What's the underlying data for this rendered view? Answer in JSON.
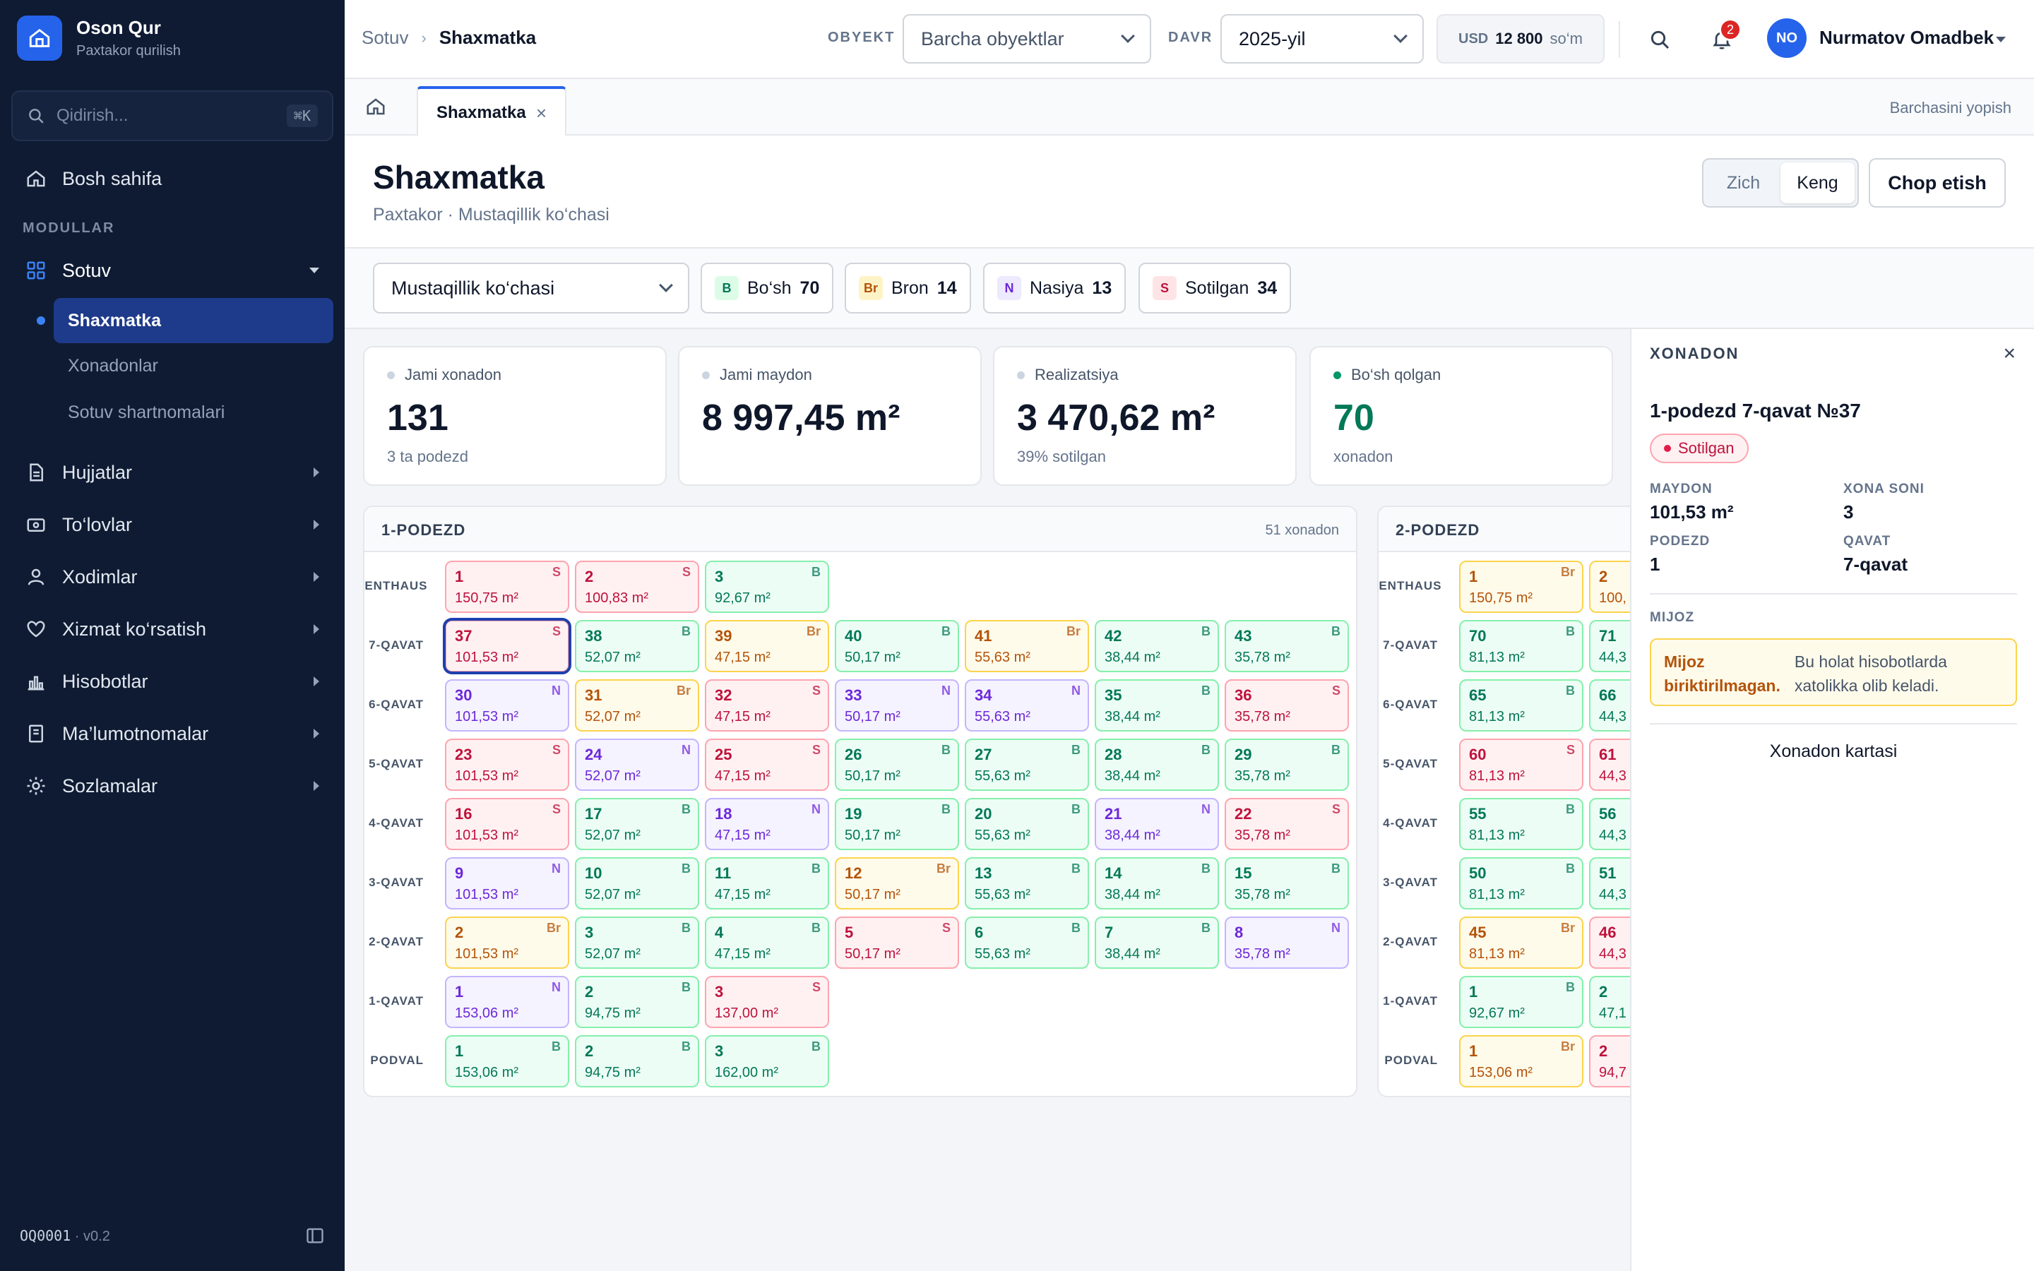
{
  "brand": {
    "name": "Oson Qur",
    "sub": "Paxtakor qurilish"
  },
  "sidebar": {
    "search_placeholder": "Qidirish...",
    "search_kbd": "⌘K",
    "home": "Bosh sahifa",
    "section": "MODULLAR",
    "modules": [
      {
        "label": "Sotuv",
        "icon": "grid-icon"
      },
      {
        "label": "Hujjatlar",
        "icon": "document-icon"
      },
      {
        "label": "To‘lovlar",
        "icon": "wallet-icon"
      },
      {
        "label": "Xodimlar",
        "icon": "user-icon"
      },
      {
        "label": "Xizmat ko‘rsatish",
        "icon": "heart-hand-icon"
      },
      {
        "label": "Hisobotlar",
        "icon": "bar-chart-icon"
      },
      {
        "label": "Ma’lumotnomalar",
        "icon": "book-icon"
      },
      {
        "label": "Sozlamalar",
        "icon": "gear-icon"
      }
    ],
    "subitems": [
      "Shaxmatka",
      "Xonadonlar",
      "Sotuv shartnomalari"
    ],
    "footer_code": "OQ0001",
    "footer_version": " · v0.2"
  },
  "topbar": {
    "crumb_parent": "Sotuv",
    "crumb_current": "Shaxmatka",
    "object_label": "OBYEKT",
    "object_value": "Barcha obyektlar",
    "period_label": "DAVR",
    "period_value": "2025-yil",
    "currency": {
      "code": "USD",
      "amount": "12 800",
      "unit": "so‘m"
    },
    "notifications": "2",
    "user_initials": "NO",
    "user_name": "Nurmatov Omadbek"
  },
  "tabs": {
    "active": "Shaxmatka",
    "close_all": "Barchasini yopish"
  },
  "page": {
    "title": "Shaxmatka",
    "subtitle": "Paxtakor · Mustaqillik ko‘chasi",
    "view_compact": "Zich",
    "view_wide": "Keng",
    "print": "Chop etish"
  },
  "filters": {
    "block": "Mustaqillik ko‘chasi",
    "legend": [
      {
        "code": "B",
        "label": "Bo‘sh",
        "count": "70",
        "color": "#047857"
      },
      {
        "code": "Br",
        "label": "Bron",
        "count": "14",
        "color": "#b45309"
      },
      {
        "code": "N",
        "label": "Nasiya",
        "count": "13",
        "color": "#6d28d9"
      },
      {
        "code": "S",
        "label": "Sotilgan",
        "count": "34",
        "color": "#be123c"
      }
    ]
  },
  "stats": [
    {
      "label": "Jami xonadon",
      "value": "131",
      "sub": "3 ta podezd"
    },
    {
      "label": "Jami maydon",
      "value": "8 997,45 m²",
      "sub": ""
    },
    {
      "label": "Realizatsiya",
      "value": "3 470,62 m²",
      "sub": "39% sotilgan"
    },
    {
      "label": "Bo‘sh qolgan",
      "value": "70",
      "sub": "xonadon"
    }
  ],
  "podezd1": {
    "title": "1-PODEZD",
    "count": "51 xonadon",
    "floors": [
      {
        "label": "PENTHAUS",
        "units": [
          [
            "1",
            "150,75 m²",
            "S"
          ],
          [
            "2",
            "100,83 m²",
            "S"
          ],
          [
            "3",
            "92,67 m²",
            "B"
          ]
        ]
      },
      {
        "label": "7-QAVAT",
        "units": [
          [
            "37",
            "101,53 m²",
            "S"
          ],
          [
            "38",
            "52,07 m²",
            "B"
          ],
          [
            "39",
            "47,15 m²",
            "Br"
          ],
          [
            "40",
            "50,17 m²",
            "B"
          ],
          [
            "41",
            "55,63 m²",
            "Br"
          ],
          [
            "42",
            "38,44 m²",
            "B"
          ],
          [
            "43",
            "35,78 m²",
            "B"
          ]
        ]
      },
      {
        "label": "6-QAVAT",
        "units": [
          [
            "30",
            "101,53 m²",
            "N"
          ],
          [
            "31",
            "52,07 m²",
            "Br"
          ],
          [
            "32",
            "47,15 m²",
            "S"
          ],
          [
            "33",
            "50,17 m²",
            "N"
          ],
          [
            "34",
            "55,63 m²",
            "N"
          ],
          [
            "35",
            "38,44 m²",
            "B"
          ],
          [
            "36",
            "35,78 m²",
            "S"
          ]
        ]
      },
      {
        "label": "5-QAVAT",
        "units": [
          [
            "23",
            "101,53 m²",
            "S"
          ],
          [
            "24",
            "52,07 m²",
            "N"
          ],
          [
            "25",
            "47,15 m²",
            "S"
          ],
          [
            "26",
            "50,17 m²",
            "B"
          ],
          [
            "27",
            "55,63 m²",
            "B"
          ],
          [
            "28",
            "38,44 m²",
            "B"
          ],
          [
            "29",
            "35,78 m²",
            "B"
          ]
        ]
      },
      {
        "label": "4-QAVAT",
        "units": [
          [
            "16",
            "101,53 m²",
            "S"
          ],
          [
            "17",
            "52,07 m²",
            "B"
          ],
          [
            "18",
            "47,15 m²",
            "N"
          ],
          [
            "19",
            "50,17 m²",
            "B"
          ],
          [
            "20",
            "55,63 m²",
            "B"
          ],
          [
            "21",
            "38,44 m²",
            "N"
          ],
          [
            "22",
            "35,78 m²",
            "S"
          ]
        ]
      },
      {
        "label": "3-QAVAT",
        "units": [
          [
            "9",
            "101,53 m²",
            "N"
          ],
          [
            "10",
            "52,07 m²",
            "B"
          ],
          [
            "11",
            "47,15 m²",
            "B"
          ],
          [
            "12",
            "50,17 m²",
            "Br"
          ],
          [
            "13",
            "55,63 m²",
            "B"
          ],
          [
            "14",
            "38,44 m²",
            "B"
          ],
          [
            "15",
            "35,78 m²",
            "B"
          ]
        ]
      },
      {
        "label": "2-QAVAT",
        "units": [
          [
            "2",
            "101,53 m²",
            "Br"
          ],
          [
            "3",
            "52,07 m²",
            "B"
          ],
          [
            "4",
            "47,15 m²",
            "B"
          ],
          [
            "5",
            "50,17 m²",
            "S"
          ],
          [
            "6",
            "55,63 m²",
            "B"
          ],
          [
            "7",
            "38,44 m²",
            "B"
          ],
          [
            "8",
            "35,78 m²",
            "N"
          ]
        ]
      },
      {
        "label": "1-QAVAT",
        "units": [
          [
            "1",
            "153,06 m²",
            "N"
          ],
          [
            "2",
            "94,75 m²",
            "B"
          ],
          [
            "3",
            "137,00 m²",
            "S"
          ]
        ]
      },
      {
        "label": "PODVAL",
        "units": [
          [
            "1",
            "153,06 m²",
            "B"
          ],
          [
            "2",
            "94,75 m²",
            "B"
          ],
          [
            "3",
            "162,00 m²",
            "B"
          ]
        ]
      }
    ]
  },
  "podezd2": {
    "title": "2-PODEZD",
    "floors": [
      {
        "label": "PENTHAUS",
        "units": [
          [
            "1",
            "150,75 m²",
            "Br"
          ],
          [
            "2",
            "100,",
            "Br"
          ]
        ]
      },
      {
        "label": "7-QAVAT",
        "units": [
          [
            "70",
            "81,13 m²",
            "B"
          ],
          [
            "71",
            "44,3",
            "B"
          ]
        ]
      },
      {
        "label": "6-QAVAT",
        "units": [
          [
            "65",
            "81,13 m²",
            "B"
          ],
          [
            "66",
            "44,3",
            "B"
          ]
        ]
      },
      {
        "label": "5-QAVAT",
        "units": [
          [
            "60",
            "81,13 m²",
            "S"
          ],
          [
            "61",
            "44,3",
            "S"
          ]
        ]
      },
      {
        "label": "4-QAVAT",
        "units": [
          [
            "55",
            "81,13 m²",
            "B"
          ],
          [
            "56",
            "44,3",
            "B"
          ]
        ]
      },
      {
        "label": "3-QAVAT",
        "units": [
          [
            "50",
            "81,13 m²",
            "B"
          ],
          [
            "51",
            "44,3",
            "B"
          ]
        ]
      },
      {
        "label": "2-QAVAT",
        "units": [
          [
            "45",
            "81,13 m²",
            "Br"
          ],
          [
            "46",
            "44,3",
            "S"
          ]
        ]
      },
      {
        "label": "1-QAVAT",
        "units": [
          [
            "1",
            "92,67 m²",
            "B"
          ],
          [
            "2",
            "47,1",
            "B"
          ]
        ]
      },
      {
        "label": "PODVAL",
        "units": [
          [
            "1",
            "153,06 m²",
            "Br"
          ],
          [
            "2",
            "94,7",
            "S"
          ]
        ]
      }
    ]
  },
  "drawer": {
    "header": "XONADON",
    "title": "1-podezd 7-qavat №37",
    "status": "Sotilgan",
    "area_label": "MAYDON",
    "area_value": "101,53 m²",
    "rooms_label": "XONA SONI",
    "rooms_value": "3",
    "podezd_label": "PODEZD",
    "podezd_value": "1",
    "floor_label": "QAVAT",
    "floor_value": "7-qavat",
    "client_label": "MIJOZ",
    "warn_title": "Mijoz biriktirilmagan.",
    "warn_text": "Bu holat hisobotlarda xatolikka olib keladi.",
    "card_link": "Xonadon kartasi"
  }
}
